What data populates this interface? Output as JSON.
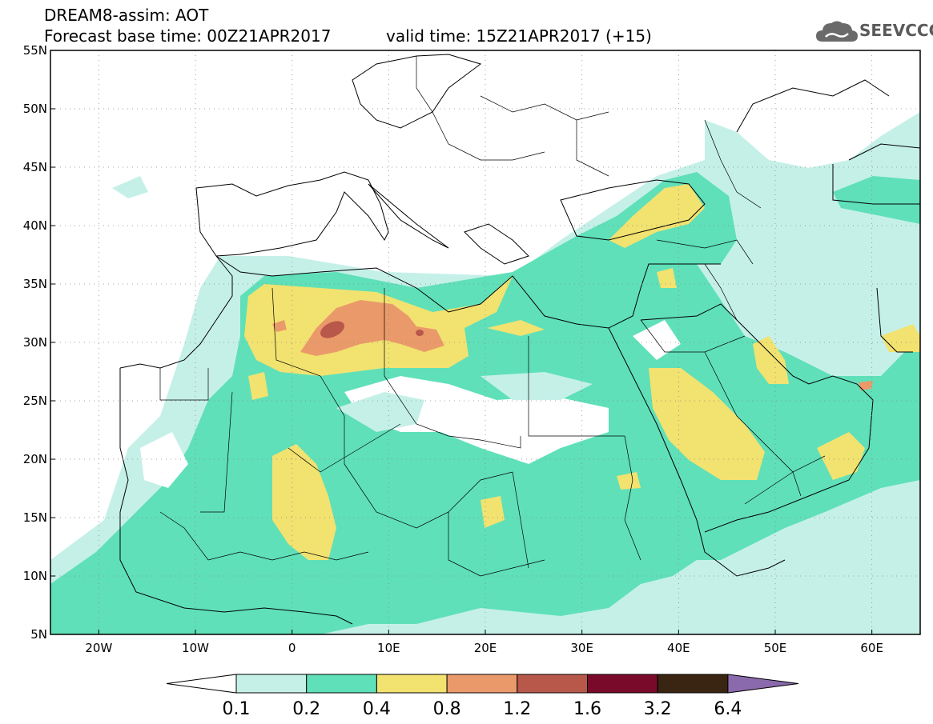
{
  "header": {
    "title_line1": "DREAM8-assim: AOT",
    "title_line2": "Forecast base time: 00Z21APR2017",
    "valid_time": "valid time: 15Z21APR2017 (+15)"
  },
  "logo": {
    "text": "SEEVCCC",
    "icon": "cloud-logo-icon",
    "color": "#5a5a5a"
  },
  "map": {
    "lon_range": [
      -25,
      65
    ],
    "lat_range": [
      5,
      55
    ],
    "lat_ticks": [
      "55N",
      "50N",
      "45N",
      "40N",
      "35N",
      "30N",
      "25N",
      "20N",
      "15N",
      "10N",
      "5N"
    ],
    "lon_ticks": [
      "20W",
      "10W",
      "0",
      "10E",
      "20E",
      "30E",
      "40E",
      "50E",
      "60E"
    ],
    "gridlines": "dotted"
  },
  "legend": {
    "boundaries": [
      "0.1",
      "0.2",
      "0.4",
      "0.8",
      "1.2",
      "1.6",
      "3.2",
      "6.4"
    ],
    "colors": [
      "#c5f0e8",
      "#5fe0b8",
      "#f2e270",
      "#ea9a6a",
      "#b8584a",
      "#7a0a2a",
      "#3a2412",
      "#8a6aac"
    ],
    "under_color": "#ffffff"
  }
}
